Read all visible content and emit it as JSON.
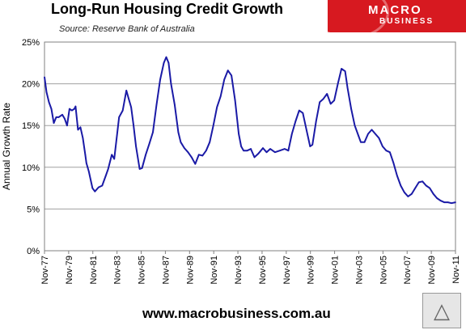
{
  "header": {
    "title": "Long-Run Housing Credit Growth",
    "subtitle": "Source: Reserve Bank of Australia"
  },
  "logo": {
    "line1": "MACRO",
    "line2": "BUSINESS",
    "color": "#d71920"
  },
  "footer": {
    "url": "www.macrobusiness.com.au"
  },
  "chart_data": {
    "type": "line",
    "title": "",
    "xlabel": "",
    "ylabel": "Annual Growth Rate",
    "ylim": [
      0,
      25
    ],
    "yticks": [
      "0%",
      "5%",
      "10%",
      "15%",
      "20%",
      "25%"
    ],
    "xticks": [
      "Nov-77",
      "Nov-79",
      "Nov-81",
      "Nov-83",
      "Nov-85",
      "Nov-87",
      "Nov-89",
      "Nov-91",
      "Nov-93",
      "Nov-95",
      "Nov-97",
      "Nov-99",
      "Nov-01",
      "Nov-03",
      "Nov-05",
      "Nov-07",
      "Nov-09",
      "Nov-11"
    ],
    "xlim": [
      1977.83,
      2011.83
    ],
    "grid": true,
    "line_color": "#1a1aa6",
    "series": [
      {
        "x": [
          1977.83,
          1978.0,
          1978.2,
          1978.4,
          1978.6,
          1978.8,
          1979.0,
          1979.3,
          1979.5,
          1979.7,
          1979.9,
          1980.1,
          1980.3,
          1980.4,
          1980.6,
          1980.8,
          1981.0,
          1981.2,
          1981.3,
          1981.5,
          1981.8,
          1982.0,
          1982.3,
          1982.6,
          1982.9,
          1983.1,
          1983.4,
          1983.6,
          1983.8,
          1984.0,
          1984.3,
          1984.6,
          1984.8,
          1985.0,
          1985.2,
          1985.4,
          1985.7,
          1985.9,
          1986.2,
          1986.5,
          1986.8,
          1987.1,
          1987.4,
          1987.7,
          1987.9,
          1988.1,
          1988.3,
          1988.6,
          1988.9,
          1989.1,
          1989.4,
          1989.7,
          1990.0,
          1990.3,
          1990.6,
          1990.9,
          1991.2,
          1991.5,
          1991.8,
          1992.1,
          1992.4,
          1992.7,
          1993.0,
          1993.3,
          1993.6,
          1993.9,
          1994.1,
          1994.3,
          1994.6,
          1994.9,
          1995.2,
          1995.5,
          1995.9,
          1996.2,
          1996.5,
          1996.9,
          1997.3,
          1997.7,
          1998.0,
          1998.3,
          1998.6,
          1998.9,
          1999.2,
          1999.5,
          1999.8,
          2000.0,
          2000.3,
          2000.6,
          2000.9,
          2001.2,
          2001.5,
          2001.8,
          2002.1,
          2002.4,
          2002.7,
          2002.9,
          2003.2,
          2003.5,
          2003.8,
          2004.0,
          2004.3,
          2004.6,
          2004.9,
          2005.2,
          2005.5,
          2005.8,
          2006.1,
          2006.4,
          2006.7,
          2007.0,
          2007.3,
          2007.6,
          2007.9,
          2008.2,
          2008.5,
          2008.8,
          2009.1,
          2009.4,
          2009.7,
          2010.0,
          2010.3,
          2010.6,
          2010.9,
          2011.2,
          2011.5,
          2011.83
        ],
        "values": [
          20.8,
          19.0,
          17.8,
          17.0,
          15.3,
          16.0,
          16.0,
          16.3,
          15.8,
          15.0,
          17.0,
          16.8,
          17.0,
          17.3,
          14.5,
          14.8,
          13.5,
          11.5,
          10.5,
          9.5,
          7.5,
          7.1,
          7.6,
          7.8,
          9.0,
          9.8,
          11.5,
          11.0,
          13.5,
          16.0,
          16.8,
          19.2,
          18.2,
          17.2,
          15.0,
          12.5,
          9.8,
          9.9,
          11.5,
          12.8,
          14.2,
          17.5,
          20.5,
          22.5,
          23.2,
          22.5,
          20.0,
          17.5,
          14.2,
          13.0,
          12.3,
          11.8,
          11.2,
          10.4,
          11.5,
          11.4,
          12.0,
          13.0,
          15.0,
          17.2,
          18.5,
          20.5,
          21.6,
          21.0,
          18.0,
          14.0,
          12.5,
          12.0,
          12.0,
          12.2,
          11.2,
          11.6,
          12.3,
          11.8,
          12.2,
          11.8,
          12.0,
          12.2,
          12.0,
          14.0,
          15.5,
          16.8,
          16.5,
          14.5,
          12.5,
          12.7,
          15.5,
          17.8,
          18.2,
          18.8,
          17.6,
          18.0,
          20.0,
          21.8,
          21.5,
          19.5,
          17.0,
          15.0,
          13.8,
          13.0,
          13.0,
          14.0,
          14.5,
          14.0,
          13.5,
          12.5,
          12.0,
          11.8,
          10.5,
          9.0,
          7.8,
          7.0,
          6.5,
          6.8,
          7.5,
          8.2,
          8.3,
          7.8,
          7.5,
          6.8,
          6.3,
          6.0,
          5.8,
          5.8,
          5.7,
          5.8
        ]
      }
    ]
  }
}
